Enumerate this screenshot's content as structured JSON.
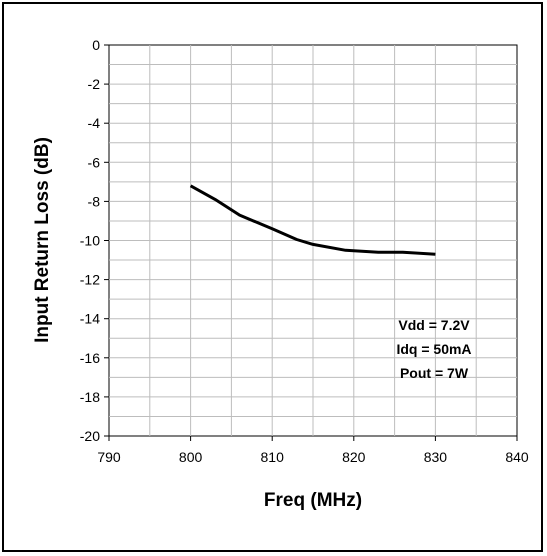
{
  "chart_data": {
    "type": "line",
    "xlabel": "Freq (MHz)",
    "ylabel": "Input Return Loss (dB)",
    "xlim": [
      790,
      840
    ],
    "ylim": [
      -20,
      0
    ],
    "x_ticks": [
      790,
      800,
      810,
      820,
      830,
      840
    ],
    "y_ticks": [
      0,
      -2,
      -4,
      -6,
      -8,
      -10,
      -12,
      -14,
      -16,
      -18,
      -20
    ],
    "grid": true,
    "line_color": "#000000",
    "series": [
      {
        "x": [
          800,
          803,
          806,
          810,
          813,
          815,
          819,
          823,
          826,
          830
        ],
        "y": [
          -7.2,
          -7.9,
          -8.7,
          -9.4,
          -9.95,
          -10.2,
          -10.5,
          -10.6,
          -10.6,
          -10.7
        ]
      }
    ],
    "annotations": [
      "Vdd = 7.2V",
      "Idq = 50mA",
      "Pout = 7W"
    ]
  }
}
